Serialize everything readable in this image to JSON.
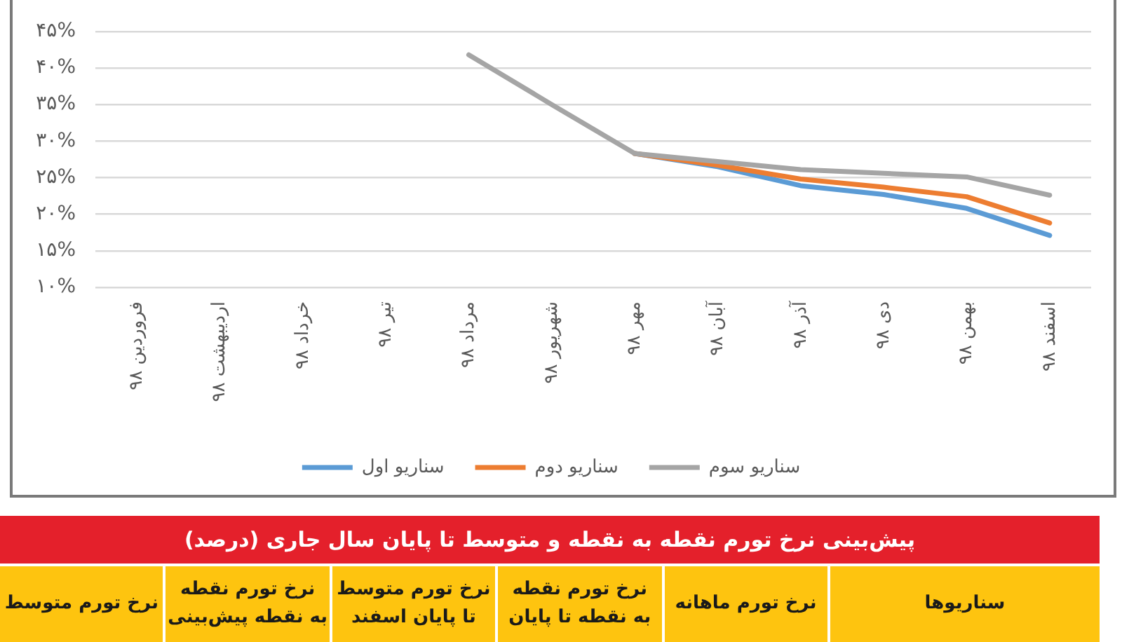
{
  "chart_data": {
    "type": "line",
    "categories": [
      "فروردین ۹۸",
      "اردیبهشت ۹۸",
      "خرداد ۹۸",
      "تیر ۹۸",
      "مرداد ۹۸",
      "شهریور ۹۸",
      "مهر ۹۸",
      "آبان ۹۸",
      "آذر ۹۸",
      "دی ۹۸",
      "بهمن ۹۸",
      "اسفند ۹۸"
    ],
    "series": [
      {
        "name": "سناریو اول",
        "color": "#5b9bd5",
        "values": [
          null,
          null,
          null,
          null,
          null,
          null,
          28.3,
          26.5,
          23.9,
          22.7,
          20.8,
          17.1
        ]
      },
      {
        "name": "سناریو دوم",
        "color": "#ed7d31",
        "values": [
          null,
          null,
          null,
          null,
          null,
          null,
          28.3,
          26.7,
          24.8,
          23.7,
          22.4,
          18.8
        ]
      },
      {
        "name": "سناریو سوم",
        "color": "#a5a5a5",
        "values": [
          null,
          null,
          null,
          null,
          41.8,
          35.0,
          28.3,
          27.2,
          26.1,
          25.6,
          25.1,
          22.6
        ]
      }
    ],
    "ylim": [
      10,
      45
    ],
    "yticks": [
      {
        "value": 10,
        "label": "۱۰%"
      },
      {
        "value": 15,
        "label": "۱۵%"
      },
      {
        "value": 20,
        "label": "۲۰%"
      },
      {
        "value": 25,
        "label": "۲۵%"
      },
      {
        "value": 30,
        "label": "۳۰%"
      },
      {
        "value": 35,
        "label": "۳۵%"
      },
      {
        "value": 40,
        "label": "۴۰%"
      },
      {
        "value": 45,
        "label": "۴۵%"
      }
    ],
    "grid": "y",
    "legend": "bottom",
    "marker": "none",
    "line_style": "solid",
    "annotations": [
      "پیش‌بینی نرخ تورم نقطه به نقطه و متوسط تا پایان سال جاری (درصد)",
      "سناریوها",
      "نرخ تورم ماهانه",
      "نرخ تورم نقطه\nبه نقطه تا پایان",
      "نرخ تورم متوسط\nتا پایان اسفند",
      "نرخ تورم نقطه\nبه نقطه پیش‌بینی",
      "نرخ تورم متوسط"
    ]
  }
}
